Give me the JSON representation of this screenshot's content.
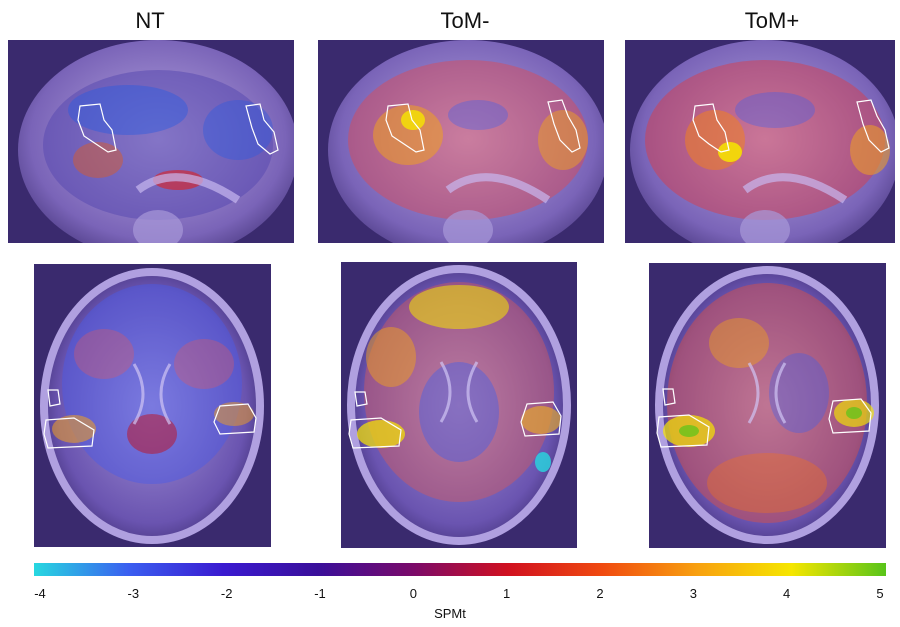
{
  "columns": [
    {
      "key": "nt",
      "label": "NT"
    },
    {
      "key": "tom_minus",
      "label": "ToM-"
    },
    {
      "key": "tom_plus",
      "label": "ToM+"
    }
  ],
  "colorbar": {
    "label": "SPMt",
    "min": -4,
    "max": 5,
    "ticks": [
      "-4",
      "-3",
      "-2",
      "-1",
      "0",
      "1",
      "2",
      "3",
      "4",
      "5"
    ],
    "stops": [
      "#27d8e0",
      "#3a5ef0",
      "#3a1ad0",
      "#3a0f9a",
      "#7a0a6a",
      "#d01020",
      "#f04a10",
      "#f8a010",
      "#f6e600",
      "#58c41a"
    ]
  },
  "colors": {
    "brain_base": "#4a3a86",
    "brain_tissue": "#9a8cc8",
    "roi_outline": "#ffffff"
  }
}
